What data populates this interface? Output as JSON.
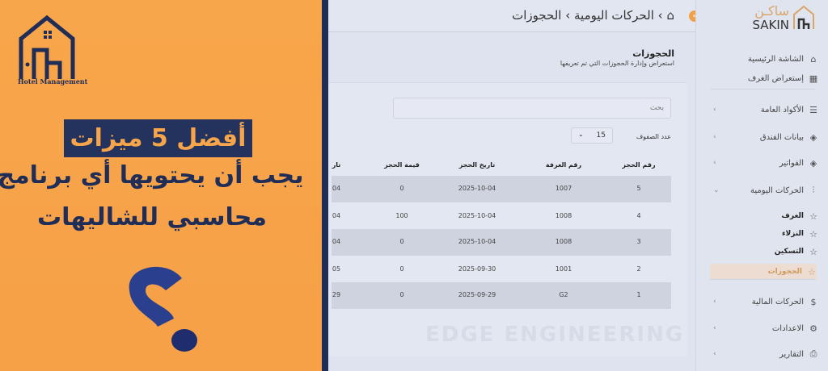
{
  "promo": {
    "logo_text": "Hotel Management",
    "headline_highlight": "أفضل 5 ميزات",
    "headline_line2": "يجب أن يحتويها أي برنامج",
    "headline_line3": "محاسبي للشاليهات",
    "colors": {
      "orange": "#f7a54a",
      "navy": "#1f2d57"
    }
  },
  "app": {
    "brand": {
      "arabic": "ساكـن",
      "english": "SAKIN"
    },
    "collapse_glyph": "«",
    "breadcrumb": {
      "home_icon": "home-icon",
      "path": "› الحركات اليومية › الحجوزات"
    },
    "page": {
      "title": "الحجوزات",
      "subtitle": "استعراض وإدارة الحجوزات التي تم تعريفها"
    },
    "search": {
      "placeholder": "بحث"
    },
    "rows_per_page": {
      "label": "عدد الصفوف",
      "value": "15"
    },
    "table": {
      "headers": [
        "رقم الحجز",
        "رقم الغرفة",
        "تاريخ الحجز",
        "قيمة الحجز",
        "تار"
      ],
      "rows": [
        [
          "5",
          "1007",
          "2025-10-04",
          "0",
          "04"
        ],
        [
          "4",
          "1008",
          "2025-10-04",
          "100",
          "04"
        ],
        [
          "3",
          "1008",
          "2025-10-04",
          "0",
          "04"
        ],
        [
          "2",
          "1001",
          "2025-09-30",
          "0",
          "05"
        ],
        [
          "1",
          "G2",
          "2025-09-29",
          "0",
          "29"
        ]
      ]
    },
    "watermark": "EDGE ENGINEERING",
    "sidebar": {
      "items": [
        {
          "label": "الشاشة الرئيسية",
          "icon": "home-icon"
        },
        {
          "label": "إستعراض الغرف",
          "icon": "grid-icon"
        },
        {
          "label": "الأكواد العامة",
          "icon": "server-icon",
          "chevron": "›"
        },
        {
          "label": "بيانات الفندق",
          "icon": "layers-icon",
          "chevron": "›"
        },
        {
          "label": "الفواتير",
          "icon": "layers-icon",
          "chevron": "›"
        },
        {
          "label": "الحركات اليومية",
          "icon": "sliders-icon",
          "chevron": "⌄"
        },
        {
          "label": "الغرف",
          "icon": "star-icon"
        },
        {
          "label": "النزلاء",
          "icon": "star-icon"
        },
        {
          "label": "التسكين",
          "icon": "star-icon"
        },
        {
          "label": "الحجوزات",
          "icon": "star-icon",
          "active": true
        },
        {
          "label": "الحركات المالية",
          "icon": "dollar-icon",
          "chevron": "›"
        },
        {
          "label": "الاعدادات",
          "icon": "gear-icon",
          "chevron": "›"
        },
        {
          "label": "التقارير",
          "icon": "printer-icon",
          "chevron": "›"
        }
      ],
      "accent": "#d09a5a"
    }
  }
}
